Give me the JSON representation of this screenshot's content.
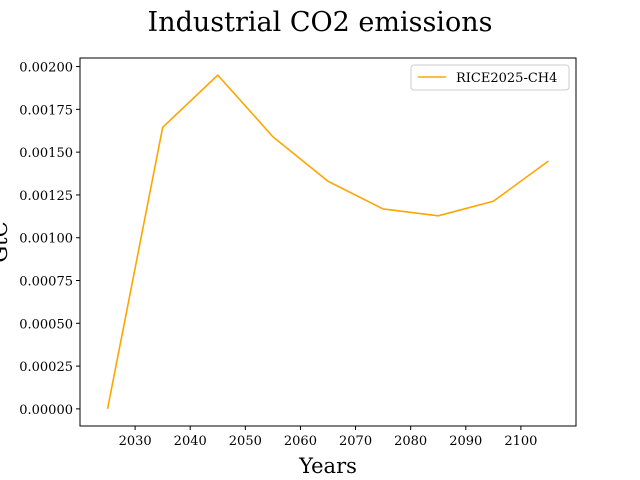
{
  "chart_data": {
    "type": "line",
    "title": "Industrial CO2 emissions",
    "xlabel": "Years",
    "ylabel": "GtC",
    "xlim": [
      2020,
      2110
    ],
    "ylim": [
      -0.0001,
      0.00205
    ],
    "x_ticks": [
      "2030",
      "2040",
      "2050",
      "2060",
      "2070",
      "2080",
      "2090",
      "2100"
    ],
    "y_ticks": [
      "0.00000",
      "0.00025",
      "0.00050",
      "0.00075",
      "0.00100",
      "0.00125",
      "0.00150",
      "0.00175",
      "0.00200"
    ],
    "legend_position": "top-right",
    "grid": false,
    "series": [
      {
        "name": "RICE2025-CH4",
        "color": "#ffa500",
        "x": [
          2025,
          2035,
          2045,
          2055,
          2065,
          2075,
          2085,
          2095,
          2105
        ],
        "y": [
          0.0,
          0.001645,
          0.00195,
          0.00159,
          0.00133,
          0.001168,
          0.001128,
          0.001213,
          0.001448
        ]
      }
    ]
  }
}
